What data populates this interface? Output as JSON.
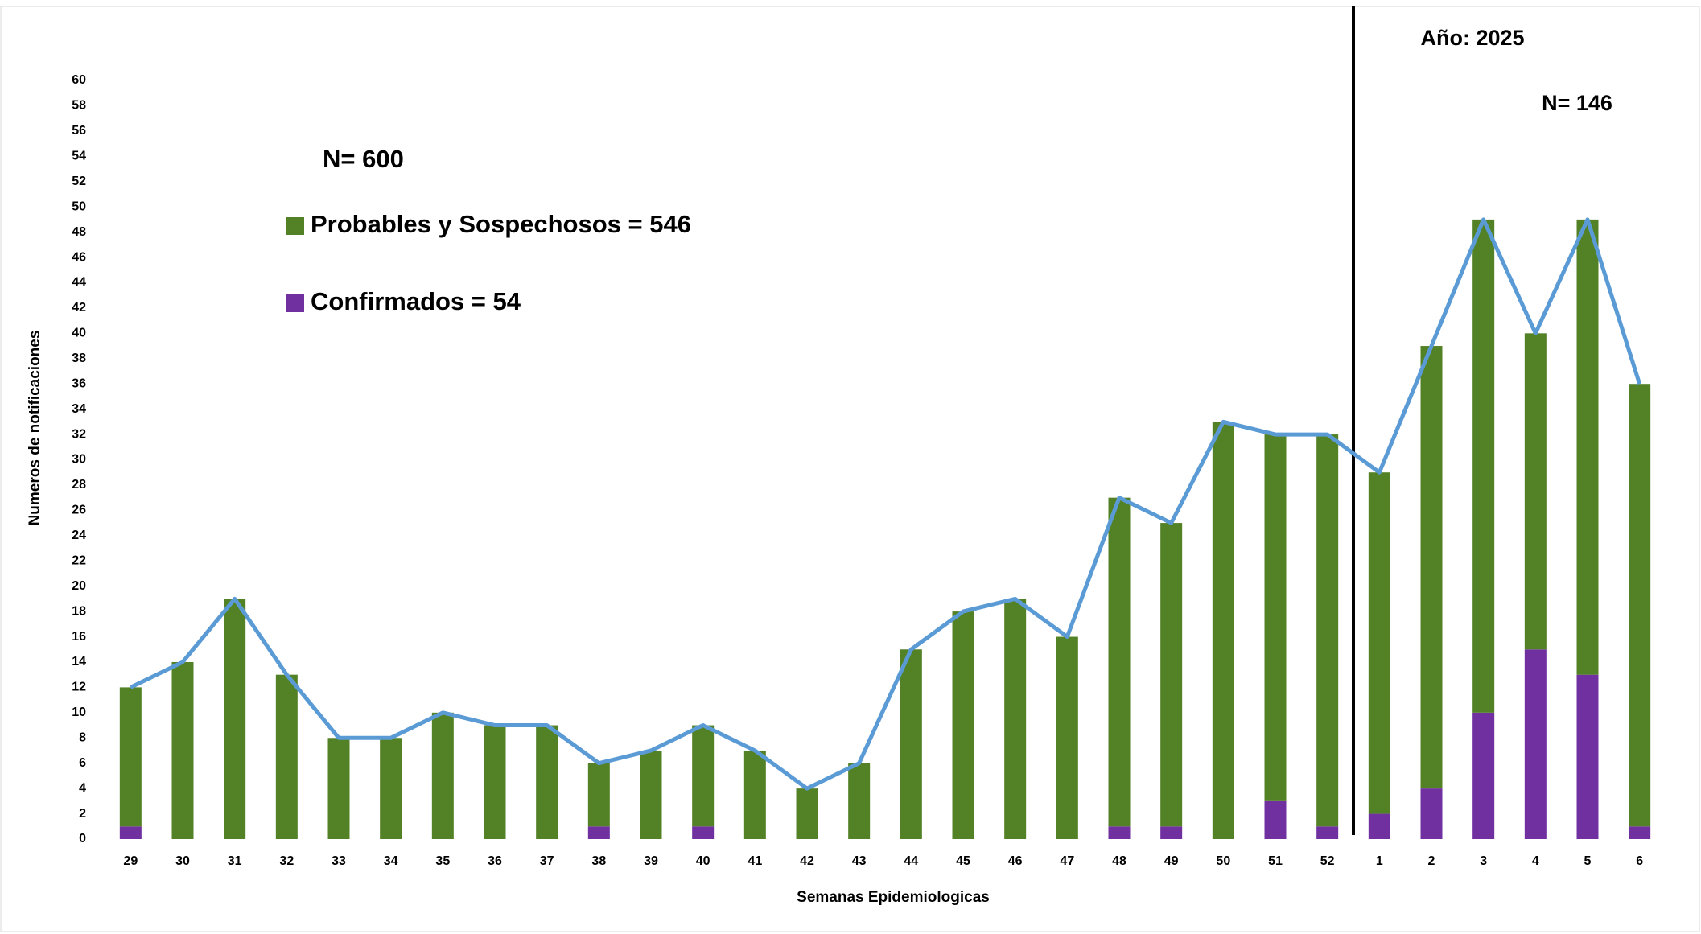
{
  "chart_data": {
    "type": "bar",
    "stacked": true,
    "x_label": "Semanas Epidemiologicas",
    "y_label": "Numeros de notificaciones",
    "annotations": [
      "N= 600",
      "Año: 2025",
      "N= 146"
    ],
    "categories": [
      "29",
      "30",
      "31",
      "32",
      "33",
      "34",
      "35",
      "36",
      "37",
      "38",
      "39",
      "40",
      "41",
      "42",
      "43",
      "44",
      "45",
      "46",
      "47",
      "48",
      "49",
      "50",
      "51",
      "52",
      "1",
      "2",
      "3",
      "4",
      "5",
      "6"
    ],
    "series": [
      {
        "name": "Confirmados = 54",
        "color": "#7030a0",
        "values": [
          1,
          0,
          0,
          0,
          0,
          0,
          0,
          0,
          0,
          1,
          0,
          1,
          0,
          0,
          0,
          0,
          0,
          0,
          0,
          1,
          1,
          0,
          3,
          1,
          2,
          4,
          10,
          15,
          13,
          1
        ]
      },
      {
        "name": "Probables y Sospechosos = 546",
        "color": "#538126",
        "values": [
          11,
          14,
          19,
          13,
          8,
          8,
          10,
          9,
          9,
          5,
          7,
          8,
          7,
          4,
          6,
          15,
          18,
          19,
          16,
          26,
          24,
          33,
          29,
          31,
          27,
          35,
          39,
          25,
          36,
          35
        ]
      }
    ],
    "line": {
      "type": "line",
      "color": "#5b9bd5",
      "values": [
        12,
        14,
        19,
        13,
        8,
        8,
        10,
        9,
        9,
        6,
        7,
        9,
        7,
        4,
        6,
        15,
        18,
        19,
        16,
        27,
        25,
        33,
        32,
        32,
        29,
        39,
        49,
        40,
        49,
        36
      ]
    },
    "ylim": [
      0,
      60
    ],
    "yticks": [
      0,
      2,
      4,
      6,
      8,
      10,
      12,
      14,
      16,
      18,
      20,
      22,
      24,
      26,
      28,
      30,
      32,
      34,
      36,
      38,
      40,
      42,
      44,
      46,
      48,
      50,
      52,
      54,
      56,
      58,
      60
    ],
    "grid": false
  }
}
